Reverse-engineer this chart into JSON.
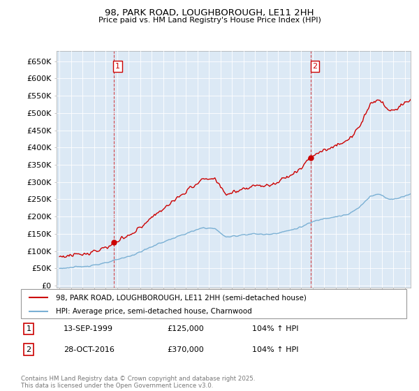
{
  "title1": "98, PARK ROAD, LOUGHBOROUGH, LE11 2HH",
  "title2": "Price paid vs. HM Land Registry's House Price Index (HPI)",
  "yticks": [
    0,
    50000,
    100000,
    150000,
    200000,
    250000,
    300000,
    350000,
    400000,
    450000,
    500000,
    550000,
    600000,
    650000
  ],
  "ytick_labels": [
    "£0",
    "£50K",
    "£100K",
    "£150K",
    "£200K",
    "£250K",
    "£300K",
    "£350K",
    "£400K",
    "£450K",
    "£500K",
    "£550K",
    "£600K",
    "£650K"
  ],
  "ylim": [
    -5000,
    680000
  ],
  "sale1_date": 1999.71,
  "sale1_price": 125000,
  "sale2_date": 2016.83,
  "sale2_price": 370000,
  "red_color": "#cc0000",
  "blue_color": "#7ab0d4",
  "bg_color": "#dce9f5",
  "vline_color": "#cc0000",
  "grid_color": "#ffffff",
  "legend_line1": "98, PARK ROAD, LOUGHBOROUGH, LE11 2HH (semi-detached house)",
  "legend_line2": "HPI: Average price, semi-detached house, Charnwood",
  "info1_date": "13-SEP-1999",
  "info1_price": "£125,000",
  "info1_hpi": "104% ↑ HPI",
  "info2_date": "28-OCT-2016",
  "info2_price": "£370,000",
  "info2_hpi": "104% ↑ HPI",
  "footer": "Contains HM Land Registry data © Crown copyright and database right 2025.\nThis data is licensed under the Open Government Licence v3.0.",
  "xmin": 1994.75,
  "xmax": 2025.5
}
